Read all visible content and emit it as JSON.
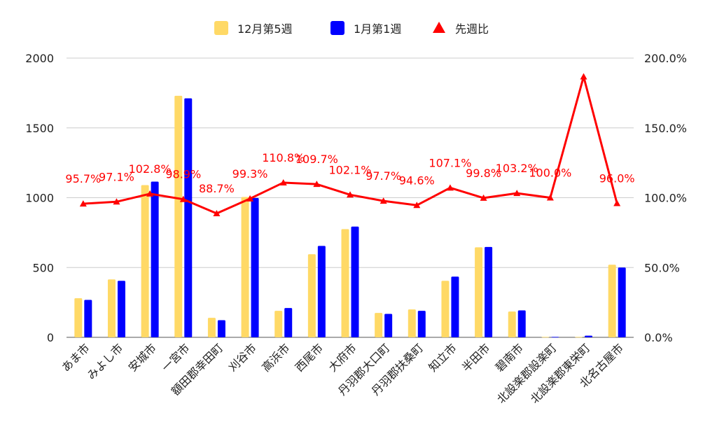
{
  "chart_data": {
    "type": "bar",
    "categories": [
      "あま市",
      "みよし市",
      "安城市",
      "一宮市",
      "額田郡幸田町",
      "刈谷市",
      "高浜市",
      "西尾市",
      "大府市",
      "丹羽郡大口町",
      "丹羽郡扶桑町",
      "知立市",
      "半田市",
      "碧南市",
      "北設楽郡設楽町",
      "北設楽郡東栄町",
      "北名古屋市"
    ],
    "series": [
      {
        "name": "12月第5週",
        "type": "bar",
        "axis": "left",
        "color": "#FFD966",
        "values": [
          280,
          415,
          1090,
          1730,
          140,
          1005,
          190,
          595,
          775,
          175,
          200,
          405,
          645,
          185,
          3,
          3,
          520
        ]
      },
      {
        "name": "1月第1週",
        "type": "bar",
        "axis": "left",
        "color": "#0000FF",
        "values": [
          268,
          405,
          1115,
          1712,
          123,
          998,
          210,
          655,
          793,
          168,
          190,
          435,
          647,
          193,
          3,
          12,
          500
        ]
      },
      {
        "name": "先週比",
        "type": "line",
        "axis": "right",
        "color": "#FF0000",
        "values": [
          95.7,
          97.1,
          102.8,
          98.9,
          88.7,
          99.3,
          110.8,
          109.7,
          102.1,
          97.7,
          94.6,
          107.1,
          99.8,
          103.2,
          100.0,
          186.7,
          96.0
        ],
        "data_labels": [
          "95.7%",
          "97.1%",
          "102.8%",
          "98.9%",
          "88.7%",
          "99.3%",
          "110.8%",
          "109.7%",
          "102.1%",
          "97.7%",
          "94.6%",
          "107.1%",
          "99.8%",
          "103.2%",
          "100.0%",
          "",
          "96.0%"
        ]
      }
    ],
    "y_left": {
      "ylim": [
        0,
        2000
      ],
      "ticks": [
        "0",
        "500",
        "1000",
        "1500",
        "2000"
      ]
    },
    "y_right": {
      "ylim": [
        0,
        200
      ],
      "ticks": [
        "0.0%",
        "50.0%",
        "100.0%",
        "150.0%",
        "200.0%"
      ]
    },
    "legend": {
      "position": "top",
      "items": [
        "12月第5週",
        "1月第1週",
        "先週比"
      ]
    },
    "grid": true
  }
}
